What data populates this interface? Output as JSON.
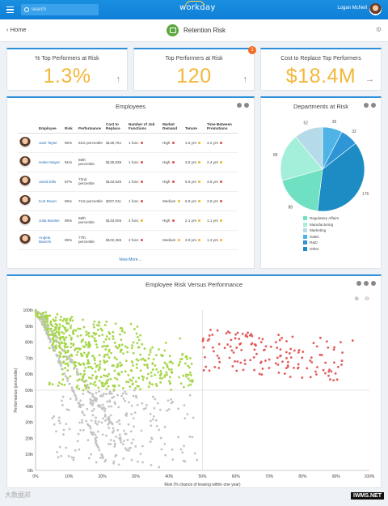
{
  "topbar": {
    "search_placeholder": "search",
    "logo": "workday",
    "user": "Logan McNeil"
  },
  "header": {
    "back": "Home",
    "title": "Retention Risk"
  },
  "kpis": [
    {
      "label": "% Top Performers at Risk",
      "value": "1.3%"
    },
    {
      "label": "Top Performers at Risk",
      "value": "120",
      "badge": "1"
    },
    {
      "label": "Cost to Replace Top Performers",
      "value": "$18.4M"
    }
  ],
  "employees": {
    "title": "Employees",
    "columns": [
      "Employee",
      "Risk",
      "Performance",
      "Cost to Replace",
      "Number of Job Functions",
      "Market Demand",
      "Tenure",
      "Time Between Promotions"
    ],
    "rows": [
      {
        "name": "Jack Taylor",
        "risk": "85%",
        "perf": "81st percentile",
        "cost": "$136,751",
        "jobs": "1 func",
        "jobs_c": "red",
        "market": "High",
        "market_c": "red",
        "tenure": "4.5 yrs",
        "tenure_c": "yel",
        "promo": "3.2 yrs",
        "promo_c": "red"
      },
      {
        "name": "Helen Mayer",
        "risk": "91%",
        "perf": "68th percentile",
        "cost": "$136,835",
        "jobs": "1 func",
        "jobs_c": "red",
        "market": "High",
        "market_c": "red",
        "tenure": "3.9 yrs",
        "tenure_c": "yel",
        "promo": "2.4 yrs",
        "promo_c": "yel"
      },
      {
        "name": "Jared Ellis",
        "risk": "87%",
        "perf": "72nd percentile",
        "cost": "$133,520",
        "jobs": "1 func",
        "jobs_c": "red",
        "market": "High",
        "market_c": "red",
        "tenure": "5.6 yrs",
        "tenure_c": "yel",
        "promo": "3.5 yrs",
        "promo_c": "red"
      },
      {
        "name": "Kurt Braun",
        "risk": "86%",
        "perf": "71st percentile",
        "cost": "$257,011",
        "jobs": "1 func",
        "jobs_c": "red",
        "market": "Medium",
        "market_c": "yel",
        "tenure": "6.8 yrs",
        "tenure_c": "yel",
        "promo": "3.9 yrs",
        "promo_c": "red"
      },
      {
        "name": "Julia Bowles",
        "risk": "85%",
        "perf": "68th percentile",
        "cost": "$133,005",
        "jobs": "4 func",
        "jobs_c": "yel",
        "market": "High",
        "market_c": "red",
        "tenure": "2.1 yrs",
        "tenure_c": "yel",
        "promo": "1.1 yrs",
        "promo_c": "yel"
      },
      {
        "name": "Angela Bianchi",
        "risk": "85%",
        "perf": "77th percentile",
        "cost": "$102,455",
        "jobs": "2 func",
        "jobs_c": "red",
        "market": "Medium",
        "market_c": "yel",
        "tenure": "2.8 yrs",
        "tenure_c": "yel",
        "promo": "1.3 yrs",
        "promo_c": "yel"
      }
    ],
    "view_more": "View More ..."
  },
  "departments": {
    "title": "Departments at Risk",
    "chart_data": {
      "type": "pie",
      "categories": [
        "Regulatory Affairs",
        "Manufacturing",
        "Marketing",
        "Sales",
        "R&D",
        "Other"
      ],
      "values": [
        88,
        86,
        52,
        36,
        32,
        176
      ],
      "colors": [
        "#6fe0c2",
        "#a3efd9",
        "#b5dbe8",
        "#4fb3e6",
        "#2e95d6",
        "#1e8cc4"
      ]
    }
  },
  "scatter": {
    "title": "Employee Risk Versus Performance",
    "chart_data": {
      "type": "scatter",
      "xlabel": "Risk (% chance of leaving within one year)",
      "ylabel": "Performance (percentile)",
      "xlim": [
        0,
        100
      ],
      "ylim": [
        0,
        100
      ],
      "xticks": [
        "0%",
        "10%",
        "20%",
        "30%",
        "40%",
        "50%",
        "60%",
        "70%",
        "80%",
        "90%",
        "100%"
      ],
      "yticks": [
        "0th",
        "10th",
        "20th",
        "30th",
        "40th",
        "50th",
        "60th",
        "70th",
        "80th",
        "90th",
        "100th"
      ],
      "series": [
        {
          "color": "#a6d64a"
        },
        {
          "color": "#e35b5b"
        },
        {
          "color": "#c4c4c4"
        }
      ]
    }
  },
  "watermark": "大数据邦",
  "watermark2": "IWMS.NET"
}
